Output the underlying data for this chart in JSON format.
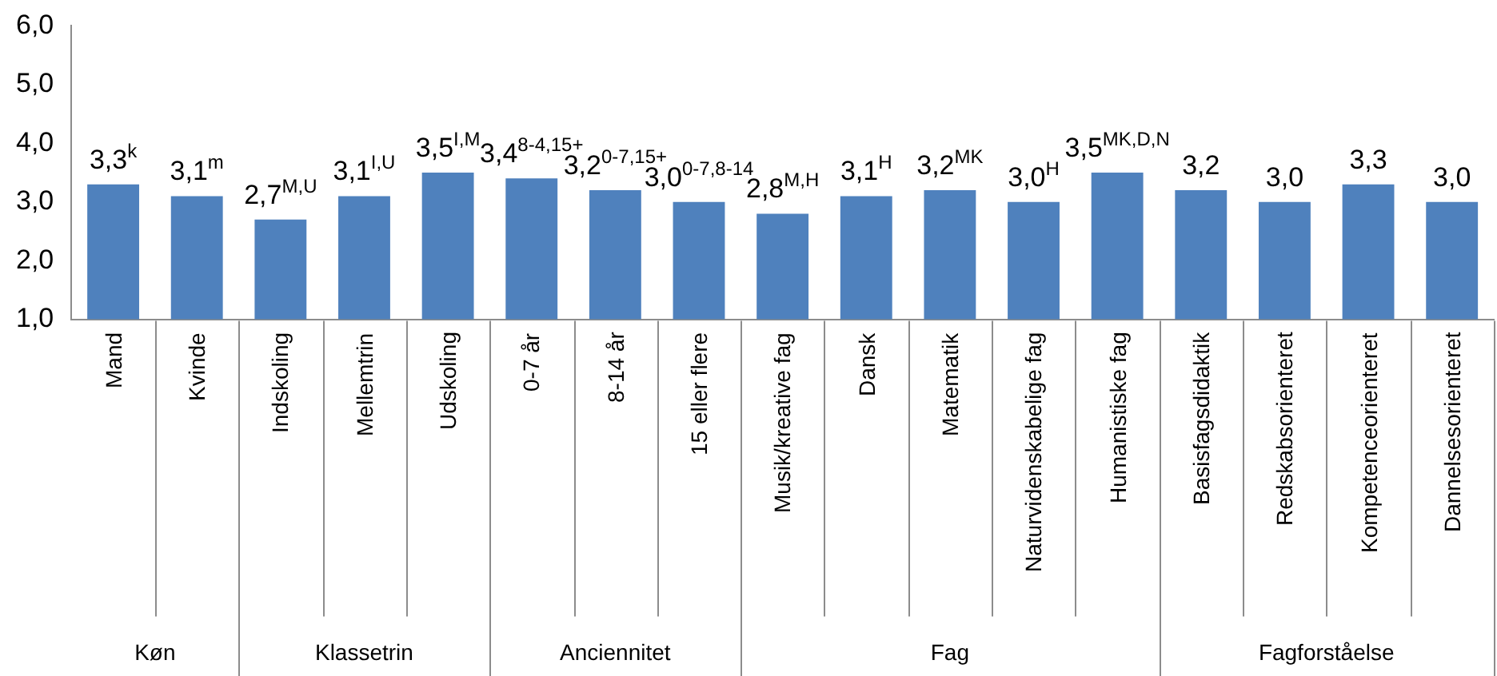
{
  "chart_data": {
    "type": "bar",
    "categories": [
      "Mand",
      "Kvinde",
      "Indskoling",
      "Mellemtrin",
      "Udskoling",
      "0-7 år",
      "8-14 år",
      "15 eller flere",
      "Musik/kreative fag",
      "Dansk",
      "Matematik",
      "Naturvidenskabelige fag",
      "Humanistiske fag",
      "Basisfagsdidaktik",
      "Redskabsorienteret",
      "Kompetenceorienteret",
      "Dannelsesorienteret"
    ],
    "values": [
      3.3,
      3.1,
      2.7,
      3.1,
      3.5,
      3.4,
      3.2,
      3.0,
      2.8,
      3.1,
      3.2,
      3.0,
      3.5,
      3.2,
      3.0,
      3.3,
      3.0
    ],
    "value_labels": [
      "3,3$^{k}$",
      "3,1$^{m}$",
      "2,7$^{M,U}$",
      "3,1$^{I,U}$",
      "3,5$^{I,M}$",
      "3,4$^{8-4,15+}$",
      "3,2$^{0-7,15+}$",
      "3,0$^{0-7,8-14}$",
      "2,8$^{M,H}$",
      "3,1$^{H}$",
      "3,2$^{MK}$",
      "3,0$^{H}$",
      "3,5$^{MK,D,N}$",
      "3,2",
      "3,0",
      "3,3",
      "3,0"
    ],
    "color": "#4f81bd",
    "ylim": [
      1,
      6
    ],
    "yticks": [
      {
        "value": 1,
        "label": "1,0"
      },
      {
        "value": 2,
        "label": "2,0"
      },
      {
        "value": 3,
        "label": "3,0"
      },
      {
        "value": 4,
        "label": "4,0"
      },
      {
        "value": 5,
        "label": "5,0"
      },
      {
        "value": 6,
        "label": "6,0"
      }
    ],
    "grid": false,
    "legend": false,
    "annotations": [
      "Køn",
      "Klassetrin",
      "Anciennitet",
      "Fag",
      "Fagforståelse"
    ]
  }
}
